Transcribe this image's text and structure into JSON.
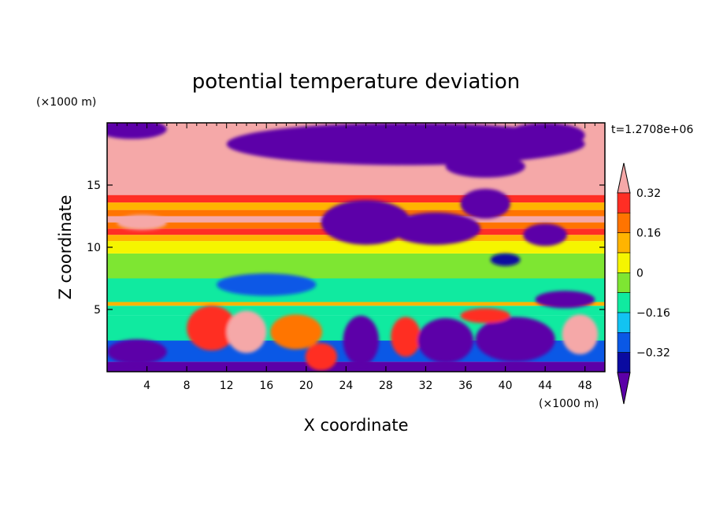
{
  "chart_data": {
    "type": "heatmap",
    "title": "potential temperature deviation",
    "xlabel": "X coordinate",
    "ylabel": "Z coordinate",
    "x_unit_label": "(×1000 m)",
    "y_unit_label": "(×1000 m)",
    "time_label": "t=1.2708e+06",
    "xlim": [
      0,
      50
    ],
    "ylim": [
      0,
      20
    ],
    "x_ticks": [
      4,
      8,
      12,
      16,
      20,
      24,
      28,
      32,
      36,
      40,
      44,
      48
    ],
    "x_tick_labels": [
      "4",
      "8",
      "12",
      "16",
      "20",
      "24",
      "28",
      "32",
      "36",
      "40",
      "44",
      "48"
    ],
    "y_ticks": [
      5,
      10,
      15
    ],
    "y_tick_labels": [
      "5",
      "10",
      "15"
    ],
    "colorbar": {
      "levels": [
        -0.4,
        -0.32,
        -0.24,
        -0.16,
        -0.08,
        0,
        0.08,
        0.16,
        0.24,
        0.32,
        0.4
      ],
      "tick_values": [
        0.32,
        0.16,
        0,
        -0.16,
        -0.32
      ],
      "tick_labels": [
        "0.32",
        "0.16",
        "0",
        "−0.16",
        "−0.32"
      ],
      "colors": [
        "#5c00a8",
        "#0a0aa0",
        "#0a58e6",
        "#12c3f2",
        "#10eaa0",
        "#7ee632",
        "#f5f500",
        "#ffb400",
        "#ff7400",
        "#ff2e24",
        "#f5a8a8"
      ],
      "extend": "both"
    },
    "bands": [
      {
        "z0": 0,
        "z1": 0.8,
        "level": 0
      },
      {
        "z0": 0.8,
        "z1": 2.5,
        "level": 2
      },
      {
        "z0": 2.5,
        "z1": 4.5,
        "level": 4
      },
      {
        "z0": 4.5,
        "z1": 5.3,
        "level": 4
      },
      {
        "z0": 5.3,
        "z1": 5.6,
        "level": 7
      },
      {
        "z0": 5.6,
        "z1": 7.5,
        "level": 4
      },
      {
        "z0": 7.5,
        "z1": 9.5,
        "level": 5
      },
      {
        "z0": 9.5,
        "z1": 10.5,
        "level": 6
      },
      {
        "z0": 10.5,
        "z1": 11.0,
        "level": 7
      },
      {
        "z0": 11.0,
        "z1": 11.5,
        "level": 9
      },
      {
        "z0": 11.5,
        "z1": 12.0,
        "level": 8
      },
      {
        "z0": 12.0,
        "z1": 12.5,
        "level": 10
      },
      {
        "z0": 12.5,
        "z1": 13.0,
        "level": 8
      },
      {
        "z0": 13.0,
        "z1": 13.6,
        "level": 7
      },
      {
        "z0": 13.6,
        "z1": 14.2,
        "level": 9
      },
      {
        "z0": 14.2,
        "z1": 15.0,
        "level": 10
      },
      {
        "z0": 15.0,
        "z1": 20.0,
        "level": 10
      }
    ],
    "blobs": [
      {
        "x": 30,
        "z": 18.3,
        "rx": 18,
        "rz": 1.7,
        "level": 0
      },
      {
        "x": 44,
        "z": 19.0,
        "rx": 4,
        "rz": 1.0,
        "level": 0
      },
      {
        "x": 2.5,
        "z": 19.5,
        "rx": 3.5,
        "rz": 0.8,
        "level": 0
      },
      {
        "x": 38,
        "z": 16.5,
        "rx": 4,
        "rz": 0.9,
        "level": 0
      },
      {
        "x": 26,
        "z": 12.0,
        "rx": 4.5,
        "rz": 1.8,
        "level": 0
      },
      {
        "x": 33,
        "z": 11.5,
        "rx": 4.5,
        "rz": 1.3,
        "level": 0
      },
      {
        "x": 38,
        "z": 13.5,
        "rx": 2.5,
        "rz": 1.2,
        "level": 0
      },
      {
        "x": 44,
        "z": 11.0,
        "rx": 2.2,
        "rz": 0.9,
        "level": 0
      },
      {
        "x": 40,
        "z": 9.0,
        "rx": 1.5,
        "rz": 0.5,
        "level": 1
      },
      {
        "x": 16,
        "z": 7.0,
        "rx": 5,
        "rz": 0.9,
        "level": 2
      },
      {
        "x": 46,
        "z": 5.8,
        "rx": 3,
        "rz": 0.7,
        "level": 0
      },
      {
        "x": 3,
        "z": 1.6,
        "rx": 3,
        "rz": 1.0,
        "level": 0
      },
      {
        "x": 10.5,
        "z": 3.5,
        "rx": 2.5,
        "rz": 1.8,
        "level": 9
      },
      {
        "x": 14,
        "z": 3.2,
        "rx": 2,
        "rz": 1.7,
        "level": 10
      },
      {
        "x": 19,
        "z": 3.2,
        "rx": 2.6,
        "rz": 1.4,
        "level": 8
      },
      {
        "x": 21.5,
        "z": 1.2,
        "rx": 1.6,
        "rz": 1.1,
        "level": 9
      },
      {
        "x": 25.5,
        "z": 2.5,
        "rx": 1.8,
        "rz": 2.0,
        "level": 0
      },
      {
        "x": 30,
        "z": 2.8,
        "rx": 1.5,
        "rz": 1.6,
        "level": 9
      },
      {
        "x": 34,
        "z": 2.5,
        "rx": 2.8,
        "rz": 1.8,
        "level": 0
      },
      {
        "x": 41,
        "z": 2.6,
        "rx": 4,
        "rz": 1.8,
        "level": 0
      },
      {
        "x": 47.5,
        "z": 3.0,
        "rx": 1.8,
        "rz": 1.6,
        "level": 10
      },
      {
        "x": 3.5,
        "z": 12.0,
        "rx": 2.5,
        "rz": 0.6,
        "level": 10
      },
      {
        "x": 38,
        "z": 4.5,
        "rx": 2.5,
        "rz": 0.6,
        "level": 9
      }
    ]
  }
}
